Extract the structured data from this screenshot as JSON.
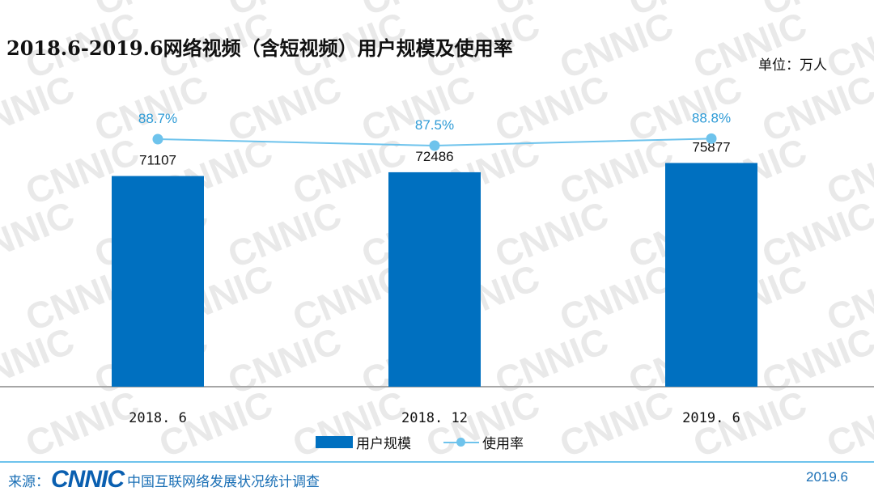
{
  "title": "2018.6-2019.6网络视频（含短视频）用户规模及使用率",
  "unit_label": "单位：万人",
  "colors": {
    "bar": "#0070c0",
    "line": "#6ec3ec",
    "pct_text": "#2e9bd6",
    "axis": "#a6a6a6"
  },
  "chart_data": {
    "type": "bar",
    "title": "2018.6-2019.6网络视频（含短视频）用户规模及使用率",
    "categories": [
      "2018. 6",
      "2018. 12",
      "2019. 6"
    ],
    "series": [
      {
        "name": "用户规模",
        "type": "bar",
        "values": [
          71107,
          72486,
          75877
        ]
      },
      {
        "name": "使用率",
        "type": "line",
        "values": [
          88.7,
          87.5,
          88.8
        ],
        "labels": [
          "88.7%",
          "87.5%",
          "88.8%"
        ]
      }
    ],
    "ylim": [
      0,
      100000
    ],
    "legend": "bottom-center",
    "grid": false
  },
  "legend": {
    "bar_label": "用户规模",
    "line_label": "使用率"
  },
  "footer": {
    "source_prefix": "来源：",
    "logo": "CNNIC",
    "org": "中国互联网络发展状况统计调查",
    "date": "2019.6"
  },
  "watermark_text": "CNNIC"
}
